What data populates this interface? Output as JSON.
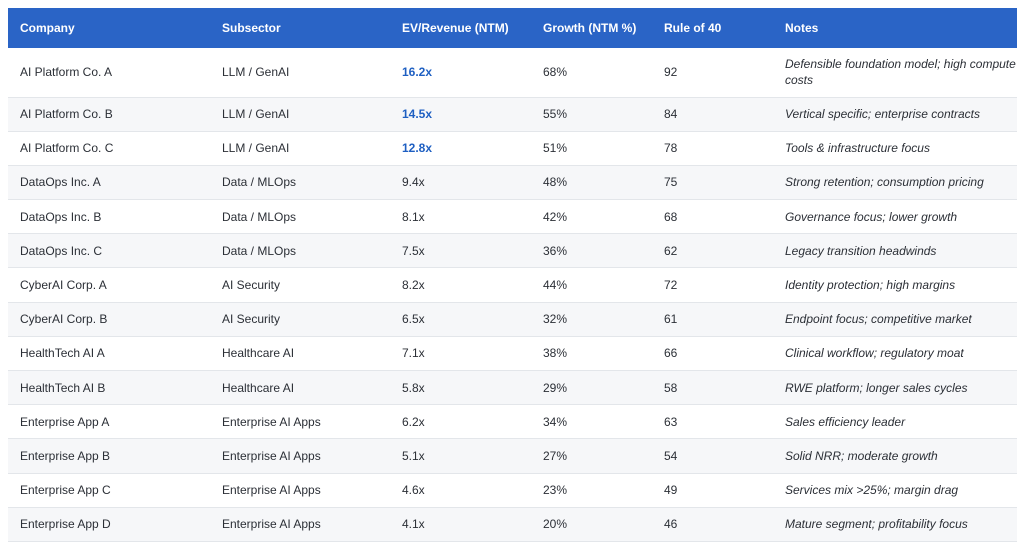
{
  "table": {
    "columns": [
      "Company",
      "Subsector",
      "EV/Revenue (NTM)",
      "Growth (NTM %)",
      "Rule of 40",
      "Notes"
    ],
    "accent_color": "#2a64c6",
    "highlight_color": "#1e5fc2",
    "rows": [
      {
        "company": "AI Platform Co. A",
        "subsector": "LLM / GenAI",
        "ev_revenue": "16.2x",
        "growth": "68%",
        "rule_of_40": "92",
        "notes": "Defensible foundation model; high compute costs",
        "highlight": true
      },
      {
        "company": "AI Platform Co. B",
        "subsector": "LLM / GenAI",
        "ev_revenue": "14.5x",
        "growth": "55%",
        "rule_of_40": "84",
        "notes": "Vertical specific; enterprise contracts",
        "highlight": true
      },
      {
        "company": "AI Platform Co. C",
        "subsector": "LLM / GenAI",
        "ev_revenue": "12.8x",
        "growth": "51%",
        "rule_of_40": "78",
        "notes": "Tools & infrastructure focus",
        "highlight": true
      },
      {
        "company": "DataOps Inc. A",
        "subsector": "Data / MLOps",
        "ev_revenue": "9.4x",
        "growth": "48%",
        "rule_of_40": "75",
        "notes": "Strong retention; consumption pricing",
        "highlight": false
      },
      {
        "company": "DataOps Inc. B",
        "subsector": "Data / MLOps",
        "ev_revenue": "8.1x",
        "growth": "42%",
        "rule_of_40": "68",
        "notes": "Governance focus; lower growth",
        "highlight": false
      },
      {
        "company": "DataOps Inc. C",
        "subsector": "Data / MLOps",
        "ev_revenue": "7.5x",
        "growth": "36%",
        "rule_of_40": "62",
        "notes": "Legacy transition headwinds",
        "highlight": false
      },
      {
        "company": "CyberAI Corp. A",
        "subsector": "AI Security",
        "ev_revenue": "8.2x",
        "growth": "44%",
        "rule_of_40": "72",
        "notes": "Identity protection; high margins",
        "highlight": false
      },
      {
        "company": "CyberAI Corp. B",
        "subsector": "AI Security",
        "ev_revenue": "6.5x",
        "growth": "32%",
        "rule_of_40": "61",
        "notes": "Endpoint focus; competitive market",
        "highlight": false
      },
      {
        "company": "HealthTech AI A",
        "subsector": "Healthcare AI",
        "ev_revenue": "7.1x",
        "growth": "38%",
        "rule_of_40": "66",
        "notes": "Clinical workflow; regulatory moat",
        "highlight": false
      },
      {
        "company": "HealthTech AI B",
        "subsector": "Healthcare AI",
        "ev_revenue": "5.8x",
        "growth": "29%",
        "rule_of_40": "58",
        "notes": "RWE platform; longer sales cycles",
        "highlight": false
      },
      {
        "company": "Enterprise App A",
        "subsector": "Enterprise AI Apps",
        "ev_revenue": "6.2x",
        "growth": "34%",
        "rule_of_40": "63",
        "notes": "Sales efficiency leader",
        "highlight": false
      },
      {
        "company": "Enterprise App B",
        "subsector": "Enterprise AI Apps",
        "ev_revenue": "5.1x",
        "growth": "27%",
        "rule_of_40": "54",
        "notes": "Solid NRR; moderate growth",
        "highlight": false
      },
      {
        "company": "Enterprise App C",
        "subsector": "Enterprise AI Apps",
        "ev_revenue": "4.6x",
        "growth": "23%",
        "rule_of_40": "49",
        "notes": "Services mix >25%; margin drag",
        "highlight": false
      },
      {
        "company": "Enterprise App D",
        "subsector": "Enterprise AI Apps",
        "ev_revenue": "4.1x",
        "growth": "20%",
        "rule_of_40": "46",
        "notes": "Mature segment; profitability focus",
        "highlight": false
      }
    ]
  }
}
